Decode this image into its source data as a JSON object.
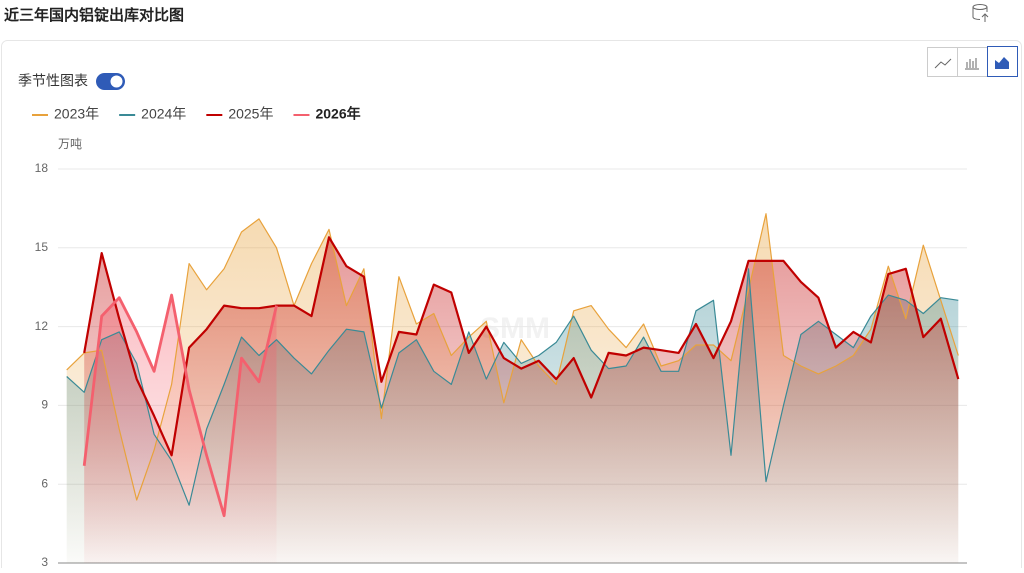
{
  "chart_data": {
    "type": "area-line",
    "title": "近三年国内铝锭出库对比图",
    "toggle_label": "季节性图表",
    "y_axis_label": "万吨",
    "watermark": "SMM",
    "categories": [
      null,
      null,
      null,
      null,
      null,
      null,
      null,
      null,
      null,
      null,
      null,
      null,
      null,
      null,
      null,
      null,
      null,
      null,
      null,
      null,
      null,
      null,
      null,
      null,
      null,
      null,
      null,
      null,
      null,
      null,
      null,
      null,
      null,
      null,
      null,
      null,
      null,
      null,
      null,
      null,
      null,
      null,
      null,
      null,
      null,
      null,
      null,
      null,
      null,
      null,
      null,
      null
    ],
    "ylim": [
      3,
      18
    ],
    "yticks": [
      3,
      6,
      9,
      12,
      15,
      18
    ],
    "grid": true,
    "highlighted_series": 3,
    "series": [
      {
        "name": "2023年",
        "color": "#e8a23c",
        "values": [
          10.35,
          11.0,
          11.1,
          8.1,
          5.4,
          7.3,
          9.8,
          14.4,
          13.4,
          14.2,
          15.6,
          16.1,
          15.0,
          12.8,
          14.4,
          15.7,
          12.8,
          14.2,
          8.5,
          13.9,
          12.1,
          12.5,
          10.9,
          11.6,
          12.2,
          9.1,
          11.5,
          10.5,
          9.8,
          12.6,
          12.8,
          11.9,
          11.2,
          12.1,
          10.5,
          10.7,
          11.3,
          11.3,
          10.7,
          13.4,
          16.3,
          10.9,
          10.5,
          10.2,
          10.5,
          10.9,
          11.9,
          14.3,
          12.3,
          15.1,
          13.0,
          10.9
        ]
      },
      {
        "name": "2024年",
        "color": "#3a8a96",
        "values": [
          10.1,
          9.5,
          11.5,
          11.8,
          10.6,
          7.9,
          6.9,
          5.2,
          8.1,
          9.8,
          11.6,
          10.9,
          11.5,
          10.8,
          10.2,
          11.1,
          11.9,
          11.8,
          8.9,
          11.0,
          11.5,
          10.3,
          9.8,
          11.8,
          10.0,
          11.4,
          10.6,
          10.9,
          11.4,
          12.4,
          11.1,
          10.4,
          10.5,
          11.6,
          10.3,
          10.3,
          12.6,
          13.0,
          7.1,
          14.2,
          6.1,
          9.0,
          11.7,
          12.2,
          11.7,
          11.2,
          12.4,
          13.2,
          13.0,
          12.5,
          13.1,
          13.0
        ]
      },
      {
        "name": "2025年",
        "color": "#c00000",
        "values": [
          null,
          11.0,
          14.8,
          12.3,
          10.0,
          8.6,
          7.1,
          11.2,
          11.9,
          12.8,
          12.7,
          12.7,
          12.8,
          12.8,
          12.4,
          15.4,
          14.3,
          13.9,
          9.9,
          11.8,
          11.7,
          13.6,
          13.3,
          11.0,
          12.0,
          10.8,
          10.4,
          10.7,
          10.0,
          10.8,
          9.3,
          11.0,
          10.9,
          11.2,
          11.1,
          11.0,
          12.1,
          10.8,
          12.2,
          14.5,
          14.5,
          14.5,
          13.7,
          13.1,
          11.2,
          11.8,
          11.4,
          14.0,
          14.2,
          11.6,
          12.3,
          10.0
        ]
      },
      {
        "name": "2026年",
        "color": "#f4606e",
        "values": [
          null,
          6.7,
          12.4,
          13.1,
          11.8,
          10.3,
          13.2,
          9.6,
          7.1,
          4.8,
          10.8,
          9.9,
          12.8,
          null,
          null,
          null,
          null,
          null,
          null,
          null,
          null,
          null,
          null,
          null,
          null,
          null,
          null,
          null,
          null,
          null,
          null,
          null,
          null,
          null,
          null,
          null,
          null,
          null,
          null,
          null,
          null,
          null,
          null,
          null,
          null,
          null,
          null,
          null,
          null,
          null,
          null,
          null
        ]
      }
    ]
  }
}
